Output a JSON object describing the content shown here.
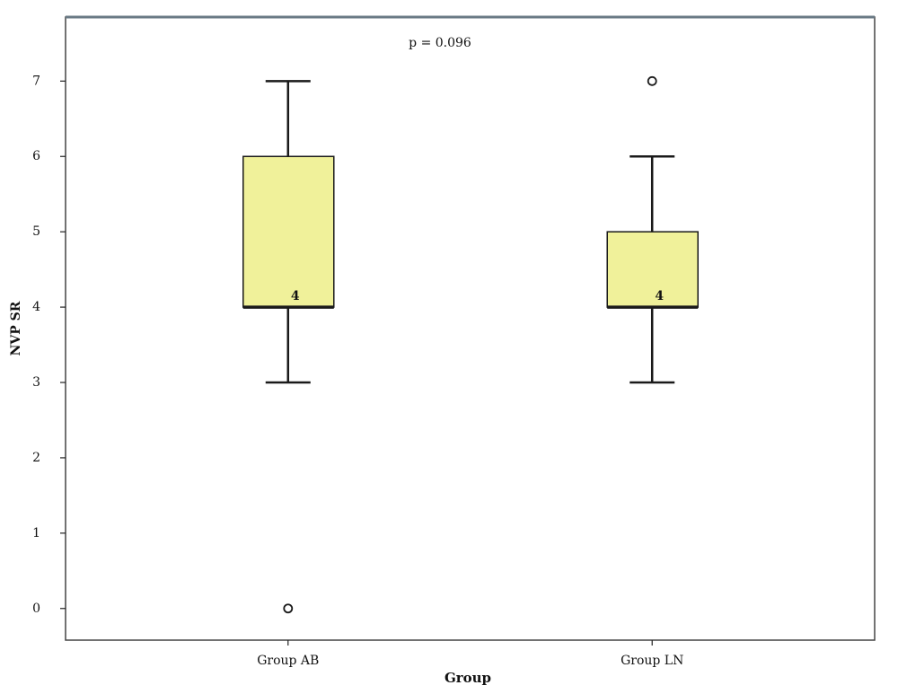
{
  "chart_data": {
    "type": "box",
    "annotation": "p = 0.096",
    "x_label": "Group",
    "y_label": "NVP SR",
    "categories": [
      "Group AB",
      "Group LN"
    ],
    "min": [
      3,
      3
    ],
    "q1": [
      4,
      4
    ],
    "median": [
      4,
      4
    ],
    "q3": [
      6,
      5
    ],
    "max": [
      7,
      6
    ],
    "outliers": [
      [
        0
      ],
      [
        7
      ]
    ],
    "color": "#f0f19a",
    "ylim": [
      -0.42,
      7.85
    ],
    "yticks": [
      0,
      1,
      2,
      3,
      4,
      5,
      6,
      7
    ]
  }
}
